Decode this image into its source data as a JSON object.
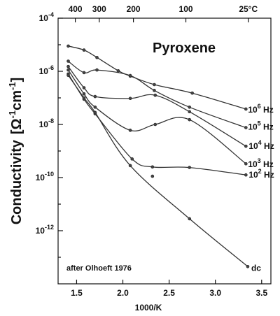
{
  "chart_data": {
    "type": "line",
    "title": "Pyroxene",
    "annotation": "after Olhoeft 1976",
    "xlabel": "1000/K",
    "ylabel_main": "Conductivity",
    "ylabel_unit": {
      "open": "[",
      "omega": "Ω",
      "exp1": "-1",
      "cm": "cm",
      "exp2": "-1",
      "close": "]"
    },
    "x_ticks": [
      {
        "v": 1.5,
        "label": "1.5"
      },
      {
        "v": 2.0,
        "label": "2.0"
      },
      {
        "v": 2.5,
        "label": "2.5"
      },
      {
        "v": 3.0,
        "label": "3.0"
      },
      {
        "v": 3.5,
        "label": "3.5"
      }
    ],
    "top_ticks": [
      {
        "v": 1.486,
        "label": "400"
      },
      {
        "v": 1.745,
        "label": "300"
      },
      {
        "v": 2.114,
        "label": "200"
      },
      {
        "v": 2.681,
        "label": "100"
      },
      {
        "v": 3.356,
        "label": "25°C"
      }
    ],
    "y_ticks": [
      {
        "exp": -4,
        "base": "10",
        "sup": "-4"
      },
      {
        "exp": -6,
        "base": "10",
        "sup": "-6"
      },
      {
        "exp": -8,
        "base": "10",
        "sup": "-8"
      },
      {
        "exp": -10,
        "base": "10",
        "sup": "-10"
      },
      {
        "exp": -12,
        "base": "10",
        "sup": "-12"
      }
    ],
    "xlim": [
      1.3,
      3.6
    ],
    "ylim_log10": [
      -14.0,
      -4.0
    ],
    "y_scale": "log",
    "grid": false,
    "series": [
      {
        "name": "10⁶ Hz",
        "label": {
          "base": "10",
          "sup": "6",
          "unit": " Hz"
        },
        "x": [
          1.41,
          1.58,
          1.72,
          1.95,
          2.08,
          2.34,
          2.75,
          3.33
        ],
        "log10y": [
          -5.05,
          -5.2,
          -5.48,
          -5.98,
          -6.18,
          -6.5,
          -6.82,
          -7.42
        ]
      },
      {
        "name": "10⁵ Hz",
        "label": {
          "base": "10",
          "sup": "5",
          "unit": " Hz"
        },
        "x": [
          1.41,
          1.58,
          1.72,
          2.08,
          2.34,
          2.72,
          3.33
        ],
        "log10y": [
          -5.62,
          -6.05,
          -5.95,
          -6.16,
          -6.72,
          -7.35,
          -8.12
        ]
      },
      {
        "name": "10⁴ Hz",
        "label": {
          "base": "10",
          "sup": "4",
          "unit": " Hz"
        },
        "x": [
          1.41,
          1.58,
          1.7,
          2.08,
          2.35,
          2.72,
          3.33
        ],
        "log10y": [
          -5.82,
          -6.62,
          -6.95,
          -7.02,
          -6.9,
          -7.52,
          -8.82
        ]
      },
      {
        "name": "10³ Hz",
        "label": {
          "base": "10",
          "sup": "3",
          "unit": " Hz"
        },
        "x": [
          1.41,
          1.58,
          1.7,
          2.08,
          2.35,
          2.72,
          3.33
        ],
        "log10y": [
          -5.95,
          -6.85,
          -7.35,
          -8.22,
          -8.0,
          -7.82,
          -9.48
        ]
      },
      {
        "name": "10² Hz",
        "label": {
          "base": "10",
          "sup": "2",
          "unit": " Hz"
        },
        "x": [
          1.41,
          1.58,
          1.7,
          2.1,
          2.32,
          2.72,
          3.33
        ],
        "log10y": [
          -6.1,
          -7.05,
          -7.6,
          -9.3,
          -9.6,
          -9.62,
          -9.9
        ]
      },
      {
        "name": "dc",
        "label": {
          "base": "dc",
          "sup": "",
          "unit": ""
        },
        "x": [
          1.41,
          1.58,
          1.7,
          2.08,
          2.72,
          3.35
        ],
        "log10y": [
          -6.15,
          -7.0,
          -7.55,
          -9.55,
          -11.55,
          -13.35
        ]
      }
    ],
    "extra_points": [
      {
        "x": 2.32,
        "log10y": -9.95
      }
    ]
  }
}
